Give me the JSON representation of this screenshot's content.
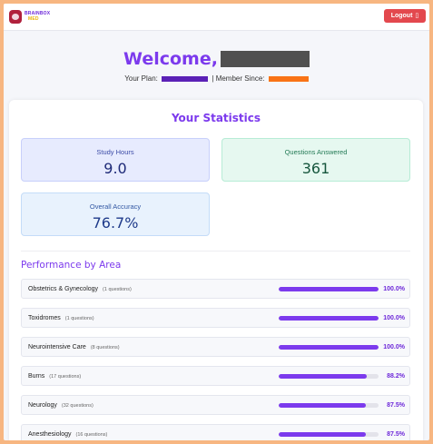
{
  "header": {
    "logo": {
      "line1": "BRAINBOX",
      "line2": "MED"
    },
    "logout_label": "Logout",
    "logout_icon": "door-icon"
  },
  "welcome": {
    "greeting": "Welcome,",
    "plan_label": "Your Plan:",
    "separator": "|",
    "member_since_label": "Member Since:"
  },
  "stats": {
    "title": "Your Statistics",
    "study_hours": {
      "label": "Study Hours",
      "value": "9.0"
    },
    "questions_answered": {
      "label": "Questions Answered",
      "value": "361"
    },
    "overall_accuracy": {
      "label": "Overall Accuracy",
      "value": "76.7%"
    }
  },
  "performance": {
    "title": "Performance by Area",
    "rows": [
      {
        "area": "Obstetrics & Gynecology",
        "count": "(1 questions)",
        "percent": "100.0%",
        "fraction": 1.0
      },
      {
        "area": "Toxidromes",
        "count": "(1 questions)",
        "percent": "100.0%",
        "fraction": 1.0
      },
      {
        "area": "Neurointensive Care",
        "count": "(8 questions)",
        "percent": "100.0%",
        "fraction": 1.0
      },
      {
        "area": "Burns",
        "count": "(17 questions)",
        "percent": "88.2%",
        "fraction": 0.882
      },
      {
        "area": "Neurology",
        "count": "(32 questions)",
        "percent": "87.5%",
        "fraction": 0.875
      },
      {
        "area": "Anesthesiology",
        "count": "(16 questions)",
        "percent": "87.5%",
        "fraction": 0.875
      }
    ]
  },
  "colors": {
    "accent": "#7c3aed",
    "logout": "#e3484e",
    "frame": "#f7b681"
  }
}
